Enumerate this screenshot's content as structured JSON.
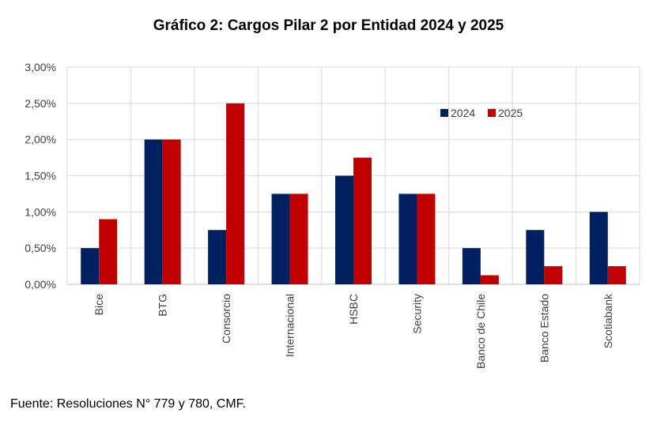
{
  "chart_data": {
    "type": "bar",
    "title": "Gráfico 2: Cargos Pilar 2 por Entidad 2024 y 2025",
    "categories": [
      "Bice",
      "BTG",
      "Consorcio",
      "Internacional",
      "HSBC",
      "Security",
      "Banco de Chile",
      "Banco Estado",
      "Scotiabank"
    ],
    "series": [
      {
        "name": "2024",
        "color": "#002060",
        "values": [
          0.5,
          2.0,
          0.75,
          1.25,
          1.5,
          1.25,
          0.5,
          0.75,
          1.0
        ]
      },
      {
        "name": "2025",
        "color": "#C00000",
        "values": [
          0.9,
          2.0,
          2.5,
          1.25,
          1.75,
          1.25,
          0.125,
          0.25,
          0.25
        ]
      }
    ],
    "ylim": [
      0,
      3
    ],
    "yticks": [
      "0,00%",
      "0,50%",
      "1,00%",
      "1,50%",
      "2,00%",
      "2,50%",
      "3,00%"
    ],
    "ytick_values": [
      0,
      0.5,
      1,
      1.5,
      2,
      2.5,
      3
    ],
    "xlabel": "",
    "ylabel": "",
    "grid": true,
    "legend": "top-right"
  },
  "source_note": "Fuente: Resoluciones N° 779 y 780, CMF."
}
